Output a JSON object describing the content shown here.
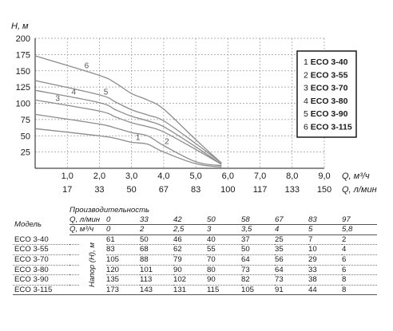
{
  "chart_data": {
    "type": "line",
    "ylabel": "H, м",
    "xlabel": "Q, м³/ч",
    "xlabel2": "Q, л/мин",
    "ylim": [
      0,
      200
    ],
    "xlim": [
      0,
      9
    ],
    "yticks": [
      25,
      50,
      75,
      100,
      125,
      150,
      175,
      200
    ],
    "xticks": [
      {
        "q": 1,
        "label": "1,0",
        "label2": "17"
      },
      {
        "q": 2,
        "label": "2,0",
        "label2": "33"
      },
      {
        "q": 3,
        "label": "3,0",
        "label2": "50"
      },
      {
        "q": 4,
        "label": "4,0",
        "label2": "67"
      },
      {
        "q": 5,
        "label": "5,0",
        "label2": "83"
      },
      {
        "q": 6,
        "label": "6,0",
        "label2": "100"
      },
      {
        "q": 7,
        "label": "7,0",
        "label2": "117"
      },
      {
        "q": 8,
        "label": "8,0",
        "label2": "133"
      },
      {
        "q": 9,
        "label": "9,0",
        "label2": "150"
      }
    ],
    "grid": "dashed",
    "legend_position": "right",
    "series": [
      {
        "id": "1",
        "name": "ECO 3-40",
        "x": [
          0,
          2,
          2.5,
          3,
          3.5,
          4,
          5,
          5.8
        ],
        "y": [
          61,
          50,
          46,
          40,
          37,
          25,
          7,
          2
        ]
      },
      {
        "id": "2",
        "name": "ECO 3-55",
        "x": [
          0,
          2,
          2.5,
          3,
          3.5,
          4,
          5,
          5.8
        ],
        "y": [
          83,
          68,
          62,
          55,
          50,
          35,
          10,
          4
        ]
      },
      {
        "id": "3",
        "name": "ECO 3-70",
        "x": [
          0,
          2,
          2.5,
          3,
          3.5,
          4,
          5,
          5.8
        ],
        "y": [
          105,
          88,
          79,
          70,
          64,
          56,
          29,
          6
        ]
      },
      {
        "id": "4",
        "name": "ECO 3-80",
        "x": [
          0,
          2,
          2.5,
          3,
          3.5,
          4,
          5,
          5.8
        ],
        "y": [
          120,
          101,
          90,
          80,
          73,
          64,
          33,
          6
        ]
      },
      {
        "id": "5",
        "name": "ECO 3-90",
        "x": [
          0,
          2,
          2.5,
          3,
          3.5,
          4,
          5,
          5.8
        ],
        "y": [
          135,
          113,
          102,
          90,
          82,
          73,
          38,
          8
        ]
      },
      {
        "id": "6",
        "name": "ECO 3-115",
        "x": [
          0,
          2,
          2.5,
          3,
          3.5,
          4,
          5,
          5.8
        ],
        "y": [
          173,
          143,
          131,
          115,
          105,
          91,
          44,
          8
        ]
      }
    ]
  },
  "table": {
    "model_header": "Модель",
    "perf_header": "Производительность",
    "q_lmin_label": "Q, л/мин",
    "q_m3h_label": "Q, м³/ч",
    "head_label": "Напор (Н), м",
    "q_lmin": [
      "0",
      "33",
      "42",
      "50",
      "58",
      "67",
      "83",
      "97"
    ],
    "q_m3h": [
      "0",
      "2",
      "2,5",
      "3",
      "3,5",
      "4",
      "5",
      "5,8"
    ],
    "rows": [
      {
        "model": "ECO 3-40",
        "values": [
          "61",
          "50",
          "46",
          "40",
          "37",
          "25",
          "7",
          "2"
        ]
      },
      {
        "model": "ECO 3-55",
        "values": [
          "83",
          "68",
          "62",
          "55",
          "50",
          "35",
          "10",
          "4"
        ]
      },
      {
        "model": "ECO 3-70",
        "values": [
          "105",
          "88",
          "79",
          "70",
          "64",
          "56",
          "29",
          "6"
        ]
      },
      {
        "model": "ECO 3-80",
        "values": [
          "120",
          "101",
          "90",
          "80",
          "73",
          "64",
          "33",
          "6"
        ]
      },
      {
        "model": "ECO 3-90",
        "values": [
          "135",
          "113",
          "102",
          "90",
          "82",
          "73",
          "38",
          "8"
        ]
      },
      {
        "model": "ECO 3-115",
        "values": [
          "173",
          "143",
          "131",
          "115",
          "105",
          "91",
          "44",
          "8"
        ]
      }
    ]
  }
}
